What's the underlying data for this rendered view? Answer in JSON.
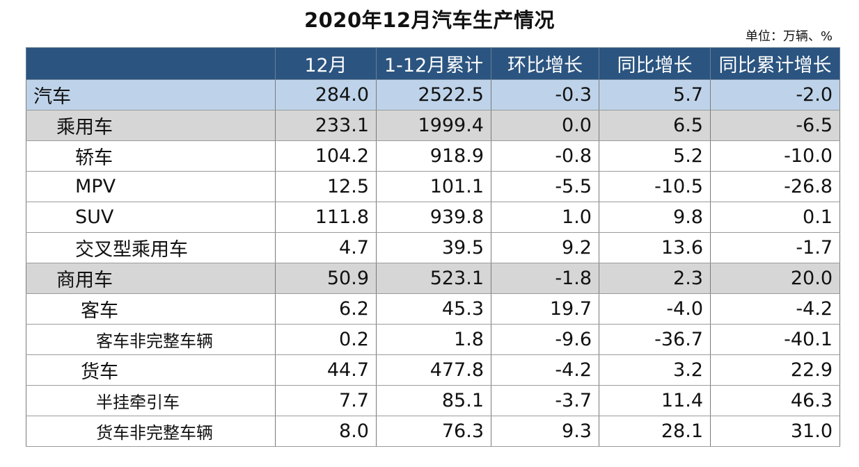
{
  "title": "2020年12月汽车生产情况",
  "unit": "单位：万辆、%",
  "headers": [
    "",
    "12月",
    "1-12月累计",
    "环比增长",
    "同比增长",
    "同比累计增长"
  ],
  "rows": [
    {
      "level": 0,
      "name": "汽车",
      "values": [
        "284.0",
        "2522.5",
        "-0.3",
        "5.7",
        "-2.0"
      ]
    },
    {
      "level": 1,
      "name": "乘用车",
      "values": [
        "233.1",
        "1999.4",
        "0.0",
        "6.5",
        "-6.5"
      ]
    },
    {
      "level": 2,
      "name": "轿车",
      "values": [
        "104.2",
        "918.9",
        "-0.8",
        "5.2",
        "-10.0"
      ]
    },
    {
      "level": 2,
      "name": "MPV",
      "values": [
        "12.5",
        "101.1",
        "-5.5",
        "-10.5",
        "-26.8"
      ]
    },
    {
      "level": 2,
      "name": "SUV",
      "values": [
        "111.8",
        "939.8",
        "1.0",
        "9.8",
        "0.1"
      ]
    },
    {
      "level": 2,
      "name": "交叉型乘用车",
      "values": [
        "4.7",
        "39.5",
        "9.2",
        "13.6",
        "-1.7"
      ]
    },
    {
      "level": 1,
      "name": "商用车",
      "values": [
        "50.9",
        "523.1",
        "-1.8",
        "2.3",
        "20.0"
      ]
    },
    {
      "level": "2b",
      "name": "客车",
      "values": [
        "6.2",
        "45.3",
        "19.7",
        "-4.0",
        "-4.2"
      ]
    },
    {
      "level": 3,
      "name": "客车非完整车辆",
      "values": [
        "0.2",
        "1.8",
        "-9.6",
        "-36.7",
        "-40.1"
      ]
    },
    {
      "level": "2b",
      "name": "货车",
      "values": [
        "44.7",
        "477.8",
        "-4.2",
        "3.2",
        "22.9"
      ]
    },
    {
      "level": 3,
      "name": "半挂牵引车",
      "values": [
        "7.7",
        "85.1",
        "-3.7",
        "11.4",
        "46.3"
      ]
    },
    {
      "level": 3,
      "name": "货车非完整车辆",
      "values": [
        "8.0",
        "76.3",
        "9.3",
        "28.1",
        "31.0"
      ]
    }
  ]
}
